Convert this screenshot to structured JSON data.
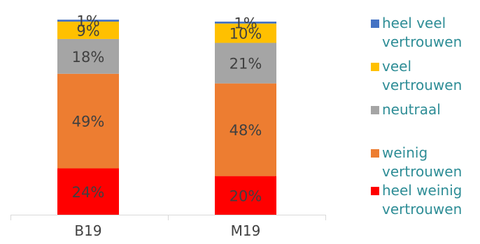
{
  "chart_data": {
    "type": "bar",
    "stacked": true,
    "categories": [
      "B19",
      "M19"
    ],
    "series": [
      {
        "name": "heel weinig vertrouwen",
        "color": "#ff0000",
        "values": [
          24,
          20
        ],
        "labels": [
          "24%",
          "20%"
        ]
      },
      {
        "name": "weinig vertrouwen",
        "color": "#ed7d31",
        "values": [
          49,
          48
        ],
        "labels": [
          "49%",
          "48%"
        ]
      },
      {
        "name": "neutraal",
        "color": "#a5a5a5",
        "values": [
          18,
          21
        ],
        "labels": [
          "18%",
          "21%"
        ]
      },
      {
        "name": "veel vertrouwen",
        "color": "#ffc000",
        "values": [
          9,
          10
        ],
        "labels": [
          "9%",
          "10%"
        ]
      },
      {
        "name": "heel veel vertrouwen",
        "color": "#4472c4",
        "values": [
          1,
          1
        ],
        "labels": [
          "1%",
          "1%"
        ]
      }
    ],
    "ylim": [
      0,
      100
    ],
    "grid": false,
    "legend_position": "right"
  }
}
